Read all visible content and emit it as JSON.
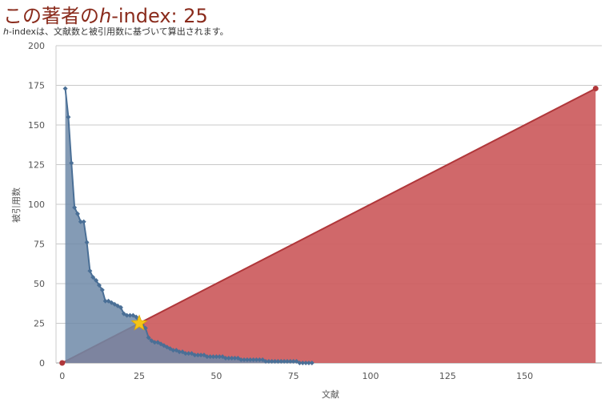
{
  "header": {
    "title_h": "h",
    "title_rest": "-index: 25",
    "title_prefix": "この著者の",
    "subtitle_h": "h",
    "subtitle_rest": "-indexは、文献数と被引用数に基づいて算出されます。"
  },
  "colors": {
    "citations": "#4a6f96",
    "citations_fill": "#6f8aa8",
    "diagonal": "#b0373a",
    "diagonal_fill": "#cd6062",
    "star": "#f5c518",
    "grid": "#c8c8c8"
  },
  "chart_data": {
    "type": "area",
    "xlabel": "文献",
    "ylabel": "被引用数",
    "xlim": [
      -2,
      175
    ],
    "ylim": [
      0,
      200
    ],
    "x_ticks": [
      0,
      25,
      50,
      75,
      100,
      125,
      150
    ],
    "y_ticks": [
      0,
      25,
      50,
      75,
      100,
      125,
      150,
      175,
      200
    ],
    "grid": true,
    "legend": "none",
    "h_index": 25,
    "series": [
      {
        "type": "line-area",
        "x": [
          1,
          2,
          3,
          4,
          5,
          6,
          7,
          8,
          9,
          10,
          11,
          12,
          13,
          14,
          15,
          16,
          17,
          18,
          19,
          20,
          21,
          22,
          23,
          24,
          25,
          26,
          27,
          28,
          29,
          30,
          31,
          32,
          33,
          34,
          35,
          36,
          37,
          38,
          39,
          40,
          41,
          42,
          43,
          44,
          45,
          46,
          47,
          48,
          49,
          50,
          51,
          52,
          53,
          54,
          55,
          56,
          57,
          58,
          59,
          60,
          61,
          62,
          63,
          64,
          65,
          66,
          67,
          68,
          69,
          70,
          71,
          72,
          73,
          74,
          75,
          76,
          77,
          78,
          79,
          80,
          81
        ],
        "values": [
          173,
          155,
          126,
          98,
          94,
          89,
          89,
          76,
          58,
          54,
          52,
          49,
          46,
          39,
          39,
          38,
          37,
          36,
          35,
          31,
          30,
          30,
          30,
          29,
          25,
          24,
          22,
          16,
          14,
          13,
          13,
          12,
          11,
          10,
          9,
          8,
          8,
          7,
          7,
          6,
          6,
          6,
          5,
          5,
          5,
          5,
          4,
          4,
          4,
          4,
          4,
          4,
          3,
          3,
          3,
          3,
          3,
          2,
          2,
          2,
          2,
          2,
          2,
          2,
          2,
          1,
          1,
          1,
          1,
          1,
          1,
          1,
          1,
          1,
          1,
          1,
          0,
          0,
          0,
          0,
          0
        ]
      },
      {
        "type": "diagonal-area",
        "x": [
          0,
          173
        ],
        "values": [
          0,
          173
        ]
      }
    ]
  }
}
